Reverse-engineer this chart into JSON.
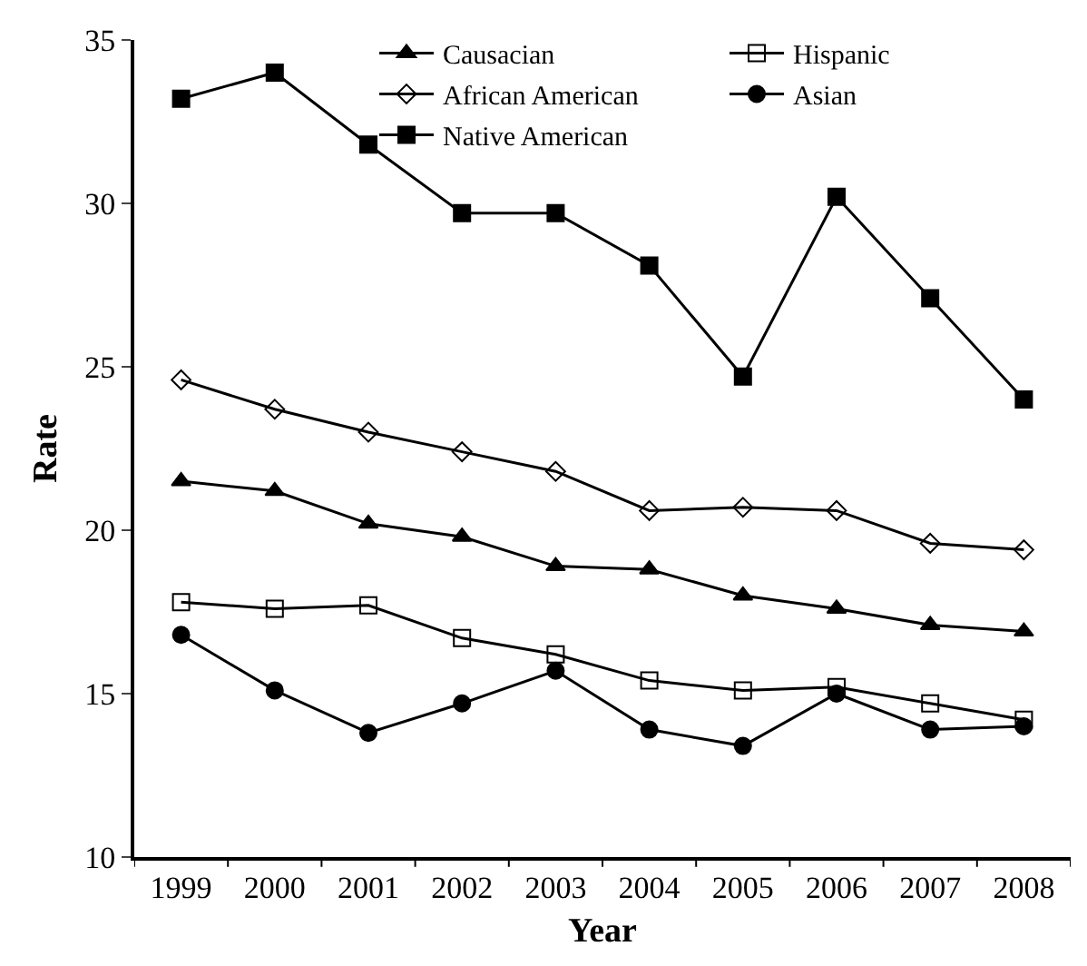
{
  "chart_data": {
    "type": "line",
    "xlabel": "Year",
    "ylabel": "Rate",
    "categories": [
      "1999",
      "2000",
      "2001",
      "2002",
      "2003",
      "2004",
      "2005",
      "2006",
      "2007",
      "2008"
    ],
    "ylim": [
      10,
      35
    ],
    "yticks": [
      10,
      15,
      20,
      25,
      30,
      35
    ],
    "legend": "top right",
    "series": [
      {
        "name": "Causacian",
        "color": "#000000",
        "marker": "triangle",
        "values": [
          21.5,
          21.2,
          20.2,
          19.8,
          18.9,
          18.8,
          18.0,
          17.6,
          17.1,
          16.9
        ]
      },
      {
        "name": "Hispanic",
        "color": "#000000",
        "marker": "square-open",
        "values": [
          17.8,
          17.6,
          17.7,
          16.7,
          16.2,
          15.4,
          15.1,
          15.2,
          14.7,
          14.2
        ]
      },
      {
        "name": "African American",
        "color": "#000000",
        "marker": "diamond-open",
        "values": [
          24.6,
          23.7,
          23.0,
          22.4,
          21.8,
          20.6,
          20.7,
          20.6,
          19.6,
          19.4
        ]
      },
      {
        "name": "Asian",
        "color": "#000000",
        "marker": "circle",
        "values": [
          16.8,
          15.1,
          13.8,
          14.7,
          15.7,
          13.9,
          13.4,
          15.0,
          13.9,
          14.0
        ]
      },
      {
        "name": "Native American",
        "color": "#000000",
        "marker": "square",
        "values": [
          33.2,
          34.0,
          31.8,
          29.7,
          29.7,
          28.1,
          24.7,
          30.2,
          27.1,
          24.0
        ]
      }
    ]
  }
}
